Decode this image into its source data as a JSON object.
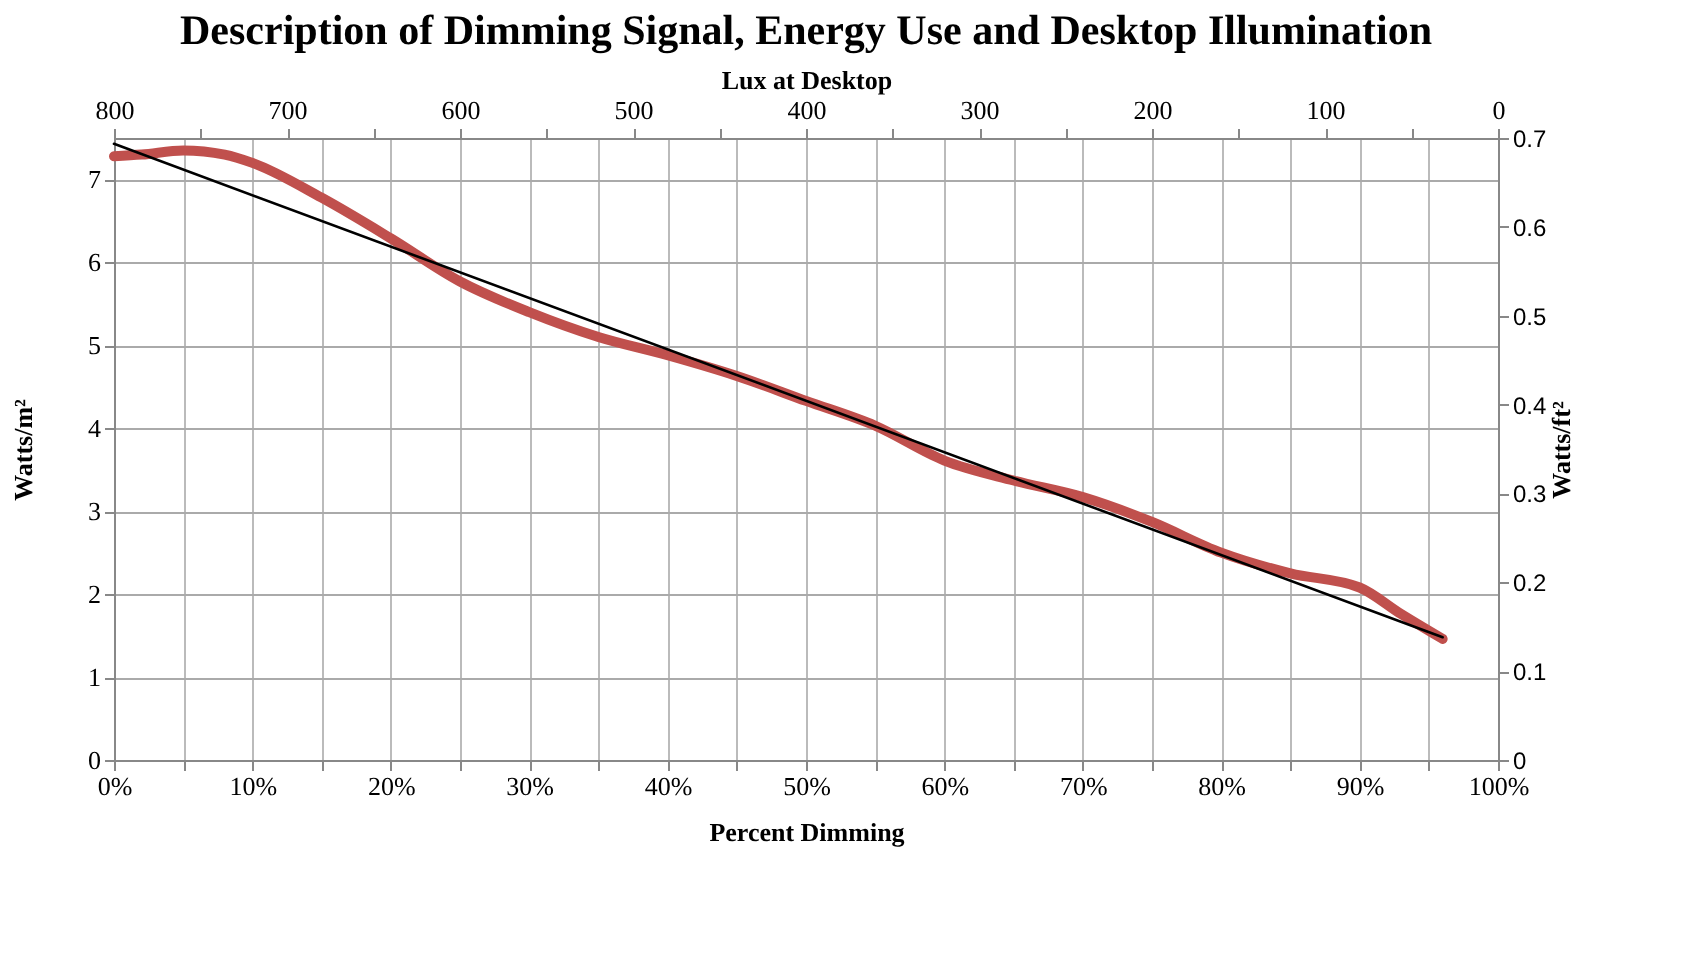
{
  "chart_data": {
    "type": "line",
    "title": "Description of Dimming Signal, Energy Use and Desktop Illumination",
    "xlabel": "Percent Dimming",
    "ylabel": "Watts/m²",
    "y2label": "Watts/ft²",
    "x2label": "Lux at Desktop",
    "xlim": [
      0,
      100
    ],
    "xticks": [
      {
        "value": 0,
        "label": "0%"
      },
      {
        "value": 5,
        "label": null
      },
      {
        "value": 10,
        "label": "10%"
      },
      {
        "value": 15,
        "label": null
      },
      {
        "value": 20,
        "label": "20%"
      },
      {
        "value": 25,
        "label": null
      },
      {
        "value": 30,
        "label": "30%"
      },
      {
        "value": 35,
        "label": null
      },
      {
        "value": 40,
        "label": "40%"
      },
      {
        "value": 45,
        "label": null
      },
      {
        "value": 50,
        "label": "50%"
      },
      {
        "value": 55,
        "label": null
      },
      {
        "value": 60,
        "label": "60%"
      },
      {
        "value": 65,
        "label": null
      },
      {
        "value": 70,
        "label": "70%"
      },
      {
        "value": 75,
        "label": null
      },
      {
        "value": 80,
        "label": "80%"
      },
      {
        "value": 85,
        "label": null
      },
      {
        "value": 90,
        "label": "90%"
      },
      {
        "value": 95,
        "label": null
      },
      {
        "value": 100,
        "label": "100%"
      }
    ],
    "x2lim": [
      800,
      0
    ],
    "x2ticks": [
      800,
      {
        "value": 750,
        "label": null
      },
      700,
      {
        "value": 650,
        "label": null
      },
      600,
      {
        "value": 550,
        "label": null
      },
      500,
      {
        "value": 450,
        "label": null
      },
      400,
      {
        "value": 350,
        "label": null
      },
      300,
      {
        "value": 250,
        "label": null
      },
      200,
      {
        "value": 150,
        "label": null
      },
      100,
      {
        "value": 50,
        "label": null
      },
      0
    ],
    "ylim": [
      0,
      7.5
    ],
    "yticks": [
      0,
      1,
      2,
      3,
      4,
      5,
      6,
      7
    ],
    "y2lim": [
      0,
      0.7
    ],
    "y2ticks": [
      0,
      0.1,
      0.2,
      0.3,
      0.4,
      0.5,
      0.6,
      0.7
    ],
    "grid": true,
    "legend": false,
    "marker": "none",
    "line_style": "solid",
    "series": [
      {
        "type": "line",
        "color": "#c0504d",
        "x": [
          0,
          2,
          5,
          8,
          10,
          15,
          20,
          25,
          30,
          35,
          40,
          45,
          50,
          55,
          60,
          65,
          70,
          75,
          80,
          85,
          90,
          93,
          96
        ],
        "values": [
          7.28,
          7.3,
          7.35,
          7.3,
          7.2,
          6.78,
          6.29,
          5.77,
          5.4,
          5.1,
          4.88,
          4.63,
          4.33,
          4.03,
          3.61,
          3.37,
          3.17,
          2.87,
          2.5,
          2.25,
          2.08,
          1.76,
          1.46
        ]
      },
      {
        "type": "line",
        "color": "#000000",
        "x": [
          0,
          96
        ],
        "values": [
          7.43,
          1.48
        ]
      }
    ]
  }
}
